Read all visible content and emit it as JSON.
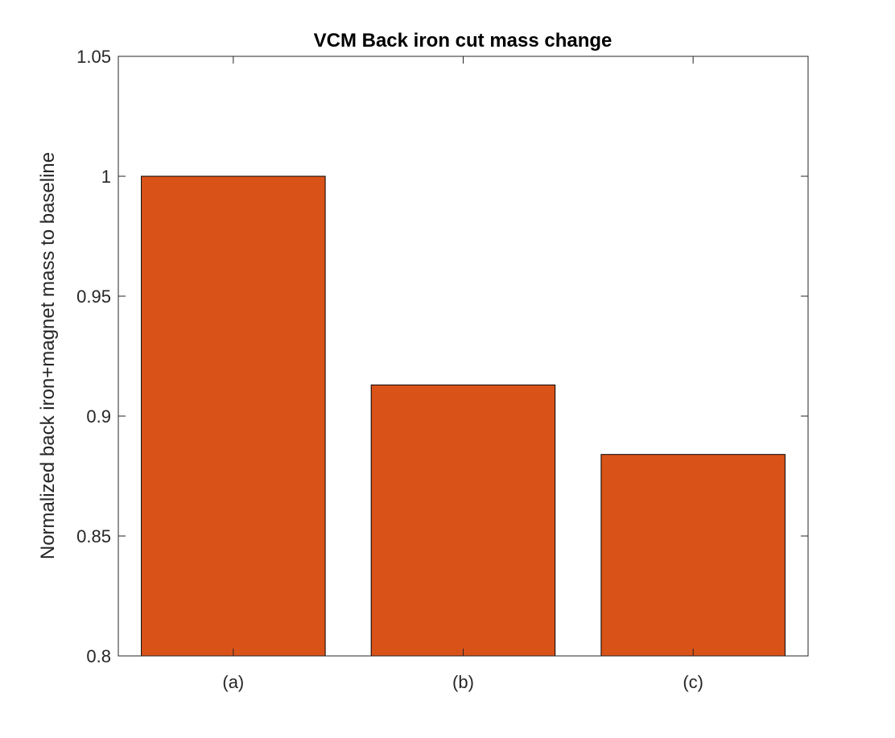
{
  "chart_data": {
    "type": "bar",
    "title": "VCM Back iron cut mass change",
    "xlabel": "",
    "ylabel": "Normalized back iron+magnet mass to baseline",
    "categories": [
      "(a)",
      "(b)",
      "(c)"
    ],
    "values": [
      1.0,
      0.913,
      0.884
    ],
    "ylim": [
      0.8,
      1.05
    ],
    "yticks": [
      0.8,
      0.85,
      0.9,
      0.95,
      1,
      1.05
    ],
    "ytick_labels": [
      "0.8",
      "0.85",
      "0.9",
      "0.95",
      "1",
      "1.05"
    ],
    "grid": false,
    "legend": "none",
    "colors": {
      "bar_fill": "#D95319",
      "bar_edge": "#000000",
      "axis": "#262626",
      "background": "#FFFFFF"
    }
  }
}
